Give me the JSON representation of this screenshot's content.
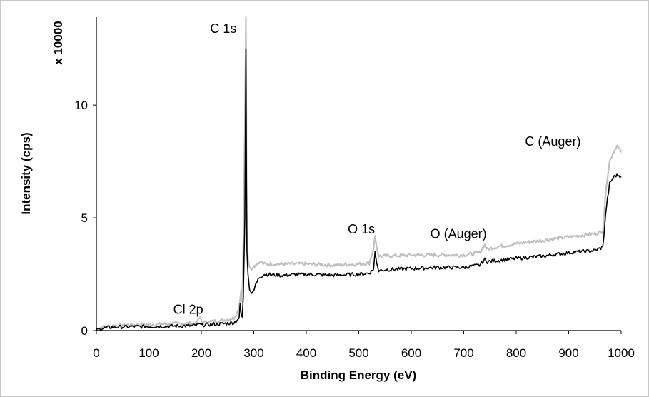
{
  "chart_data": {
    "type": "line",
    "title": "",
    "xlabel": "Binding Energy (eV)",
    "ylabel": "Intensity (cps)",
    "y_multiplier_label": "x 10000",
    "xlim": [
      0,
      1000
    ],
    "ylim": [
      0,
      13.9
    ],
    "x_ticks": [
      0,
      100,
      200,
      300,
      400,
      500,
      600,
      700,
      800,
      900,
      1000
    ],
    "y_ticks": [
      0,
      5,
      10
    ],
    "grid": false,
    "legend": "none",
    "colors": {
      "series_gray": "#c0c0c0",
      "series_black": "#000000",
      "axis": "#000000"
    },
    "annotations": [
      {
        "text": "C 1s",
        "x": 242,
        "y": 13.2
      },
      {
        "text": "Cl 2p",
        "x": 175,
        "y": 0.75
      },
      {
        "text": "O 1s",
        "x": 505,
        "y": 4.3
      },
      {
        "text": "O (Auger)",
        "x": 690,
        "y": 4.1
      },
      {
        "text": "C (Auger)",
        "x": 870,
        "y": 8.2
      }
    ],
    "series": [
      {
        "color": "#c0c0c0",
        "x": [
          0,
          10,
          30,
          60,
          100,
          150,
          190,
          198,
          202,
          210,
          240,
          262,
          268,
          272,
          276,
          278,
          280,
          283,
          285,
          286,
          287,
          289,
          292,
          296,
          300,
          305,
          310,
          320,
          350,
          400,
          450,
          500,
          520,
          528,
          531,
          534,
          538,
          550,
          600,
          650,
          700,
          730,
          740,
          745,
          760,
          800,
          850,
          900,
          950,
          965,
          972,
          978,
          985,
          992,
          1000
        ],
        "y": [
          0.05,
          0.15,
          0.22,
          0.25,
          0.27,
          0.3,
          0.33,
          0.6,
          0.35,
          0.38,
          0.45,
          0.55,
          0.8,
          1.0,
          1.8,
          1.3,
          3.5,
          9.0,
          13.9,
          8.0,
          4.0,
          3.2,
          2.8,
          2.7,
          2.85,
          2.95,
          3.05,
          2.95,
          2.95,
          2.95,
          2.9,
          2.95,
          3.0,
          3.6,
          4.2,
          3.7,
          3.3,
          3.3,
          3.35,
          3.35,
          3.35,
          3.45,
          3.8,
          3.6,
          3.7,
          3.85,
          4.0,
          4.15,
          4.3,
          4.4,
          6.5,
          7.5,
          7.9,
          8.2,
          7.9
        ]
      },
      {
        "color": "#000000",
        "x": [
          0,
          10,
          30,
          60,
          100,
          150,
          190,
          198,
          202,
          210,
          240,
          262,
          268,
          272,
          274,
          276,
          278,
          280,
          283,
          285,
          286,
          287,
          289,
          292,
          296,
          300,
          305,
          310,
          320,
          350,
          400,
          450,
          500,
          520,
          528,
          531,
          534,
          538,
          550,
          600,
          650,
          700,
          730,
          740,
          745,
          760,
          800,
          850,
          900,
          950,
          965,
          972,
          978,
          985,
          992,
          1000
        ],
        "y": [
          0.03,
          0.1,
          0.15,
          0.17,
          0.18,
          0.2,
          0.22,
          0.3,
          0.24,
          0.26,
          0.3,
          0.35,
          0.45,
          0.55,
          1.2,
          0.7,
          0.6,
          1.5,
          5.0,
          12.5,
          7.0,
          3.5,
          2.5,
          1.8,
          1.65,
          1.8,
          2.1,
          2.35,
          2.5,
          2.45,
          2.5,
          2.45,
          2.5,
          2.55,
          2.7,
          3.5,
          3.0,
          2.65,
          2.7,
          2.75,
          2.8,
          2.8,
          2.9,
          3.15,
          3.05,
          3.1,
          3.2,
          3.3,
          3.45,
          3.55,
          3.7,
          5.5,
          6.5,
          6.8,
          6.9,
          6.85
        ]
      }
    ]
  }
}
